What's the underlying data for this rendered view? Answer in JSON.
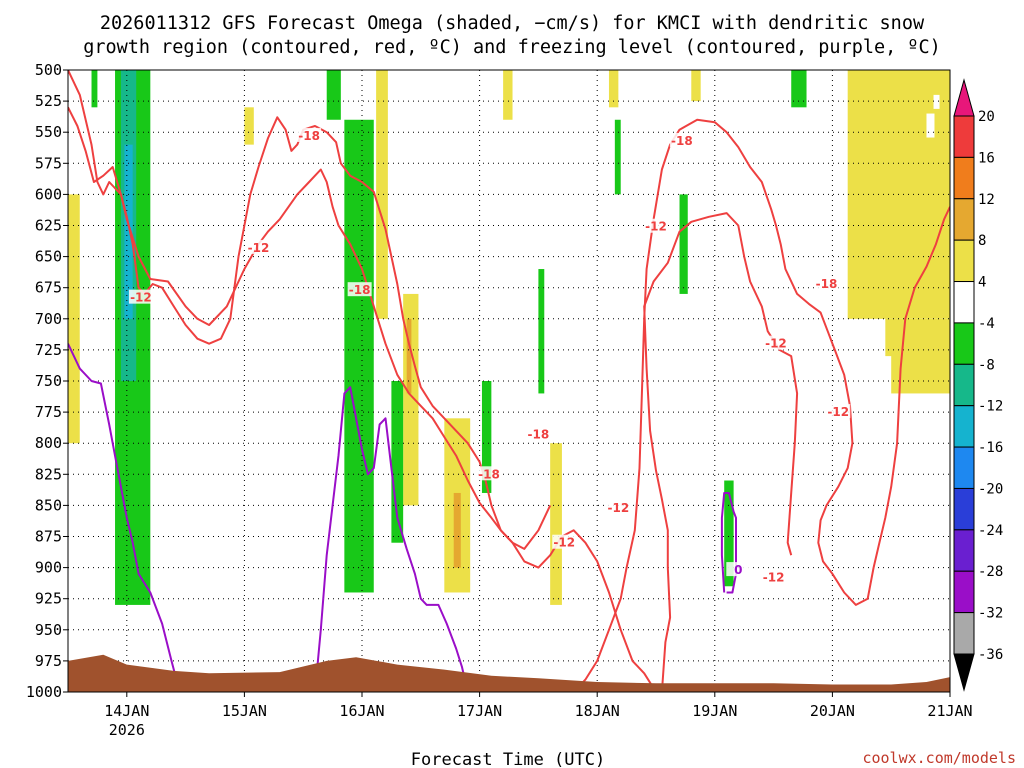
{
  "title": {
    "line1": "2026011312 GFS Forecast Omega (shaded, −cm/s) for KMCI with dendritic snow",
    "line2": "growth region (contoured, red, ºC) and freezing level (contoured, purple, ºC)"
  },
  "xlabel": "Forecast Time (UTC)",
  "credit": "coolwx.com/models",
  "chart_data": {
    "type": "heatmap",
    "title": "2026011312 GFS Forecast Omega (shaded, −cm/s) for KMCI with dendritic snow growth region (contoured, red, ºC) and freezing level (contoured, purple, ºC)",
    "xlabel": "Forecast Time (UTC)",
    "ylabel": "",
    "x_ticks": [
      {
        "t": 0.5,
        "label": "14JAN",
        "sub": "2026"
      },
      {
        "t": 1.5,
        "label": "15JAN",
        "sub": ""
      },
      {
        "t": 2.5,
        "label": "16JAN",
        "sub": ""
      },
      {
        "t": 3.5,
        "label": "17JAN",
        "sub": ""
      },
      {
        "t": 4.5,
        "label": "18JAN",
        "sub": ""
      },
      {
        "t": 5.5,
        "label": "19JAN",
        "sub": ""
      },
      {
        "t": 6.5,
        "label": "20JAN",
        "sub": ""
      },
      {
        "t": 7.5,
        "label": "21JAN",
        "sub": ""
      }
    ],
    "xlim": [
      0,
      7.5
    ],
    "y_ticks": [
      500,
      525,
      550,
      575,
      600,
      625,
      650,
      675,
      700,
      725,
      750,
      775,
      800,
      825,
      850,
      875,
      900,
      925,
      950,
      975,
      1000
    ],
    "ylim": [
      1000,
      500
    ],
    "grid": true,
    "colorbar": {
      "labels": [
        "20",
        "16",
        "12",
        "8",
        "4",
        "-4",
        "-8",
        "-12",
        "-16",
        "-20",
        "-24",
        "-28",
        "-32",
        "-36"
      ],
      "colors": [
        "#e8177a",
        "#ee3b3b",
        "#f07d1c",
        "#e5a830",
        "#ece048",
        "#ffffff",
        "#18c818",
        "#16b88a",
        "#15b3cf",
        "#1e88f0",
        "#2a3ed8",
        "#6a1fd0",
        "#9a0ec8",
        "#a9a9a9",
        "#000000"
      ]
    },
    "omega_regions": [
      {
        "band": "4 to 8",
        "color": "#ece048",
        "desc": "upward motion, upper levels late 20JAN",
        "t": [
          6.63,
          7.5
        ],
        "p": [
          500,
          750
        ]
      },
      {
        "band": "-4 to -8",
        "color": "#18c818",
        "desc": "downward motion column 16JAN",
        "t": [
          2.35,
          2.6
        ],
        "p": [
          540,
          925
        ]
      },
      {
        "band": "-8 to -12",
        "color": "#16b88a",
        "desc": "downward motion 14JAN",
        "t": [
          0.45,
          0.58
        ],
        "p": [
          500,
          750
        ]
      }
    ],
    "series": [
      {
        "name": "-18",
        "color": "#ee4040",
        "points": [
          [
            0.0,
            530
          ],
          [
            0.08,
            545
          ],
          [
            0.15,
            565
          ],
          [
            0.22,
            590
          ],
          [
            0.3,
            585
          ],
          [
            0.38,
            578
          ],
          [
            0.45,
            600
          ],
          [
            0.5,
            618
          ],
          [
            0.55,
            640
          ],
          [
            0.6,
            675
          ],
          [
            0.65,
            680
          ],
          [
            0.72,
            672
          ],
          [
            0.8,
            675
          ],
          [
            0.9,
            690
          ],
          [
            1.0,
            705
          ],
          [
            1.1,
            716
          ],
          [
            1.2,
            720
          ],
          [
            1.3,
            716
          ],
          [
            1.38,
            700
          ],
          [
            1.45,
            650
          ],
          [
            1.5,
            625
          ],
          [
            1.55,
            600
          ],
          [
            1.62,
            578
          ],
          [
            1.7,
            555
          ],
          [
            1.78,
            538
          ],
          [
            1.85,
            548
          ],
          [
            1.9,
            565
          ],
          [
            1.95,
            560
          ],
          [
            2.0,
            548
          ],
          [
            2.1,
            545
          ],
          [
            2.2,
            550
          ],
          [
            2.28,
            558
          ],
          [
            2.32,
            575
          ],
          [
            2.4,
            585
          ],
          [
            2.5,
            590
          ],
          [
            2.6,
            598
          ],
          [
            2.7,
            628
          ],
          [
            2.8,
            672
          ],
          [
            2.85,
            700
          ],
          [
            2.9,
            720
          ],
          [
            2.95,
            738
          ],
          [
            3.0,
            755
          ],
          [
            3.1,
            770
          ],
          [
            3.2,
            780
          ],
          [
            3.3,
            790
          ],
          [
            3.4,
            800
          ],
          [
            3.5,
            815
          ],
          [
            3.55,
            830
          ],
          [
            3.6,
            850
          ],
          [
            3.68,
            870
          ],
          [
            3.78,
            880
          ],
          [
            3.88,
            895
          ],
          [
            4.0,
            900
          ],
          [
            4.1,
            890
          ],
          [
            4.2,
            875
          ],
          [
            4.3,
            870
          ],
          [
            4.4,
            880
          ],
          [
            4.5,
            895
          ],
          [
            4.6,
            920
          ],
          [
            4.7,
            950
          ],
          [
            4.8,
            975
          ],
          [
            4.9,
            985
          ],
          [
            5.0,
            1000
          ]
        ]
      },
      {
        "name": "-18",
        "color": "#ee4040",
        "points": [
          [
            0.0,
            500
          ],
          [
            0.1,
            520
          ],
          [
            0.2,
            560
          ],
          [
            0.25,
            590
          ],
          [
            0.3,
            600
          ],
          [
            0.35,
            590
          ],
          [
            0.45,
            600
          ],
          [
            0.5,
            620
          ],
          [
            0.6,
            650
          ],
          [
            0.7,
            668
          ],
          [
            0.85,
            670
          ],
          [
            1.0,
            690
          ],
          [
            1.1,
            700
          ],
          [
            1.2,
            705
          ],
          [
            1.35,
            690
          ],
          [
            1.5,
            660
          ],
          [
            1.62,
            640
          ],
          [
            1.7,
            630
          ],
          [
            1.8,
            620
          ],
          [
            1.95,
            600
          ],
          [
            2.05,
            590
          ],
          [
            2.15,
            580
          ],
          [
            2.2,
            590
          ],
          [
            2.25,
            610
          ],
          [
            2.3,
            625
          ],
          [
            2.4,
            640
          ],
          [
            2.5,
            660
          ],
          [
            2.6,
            690
          ],
          [
            2.7,
            720
          ],
          [
            2.8,
            745
          ],
          [
            2.9,
            760
          ],
          [
            3.0,
            770
          ],
          [
            3.1,
            780
          ],
          [
            3.2,
            795
          ],
          [
            3.3,
            810
          ],
          [
            3.4,
            830
          ],
          [
            3.5,
            848
          ],
          [
            3.6,
            860
          ],
          [
            3.68,
            870
          ],
          [
            3.78,
            880
          ],
          [
            3.88,
            885
          ],
          [
            4.0,
            870
          ],
          [
            4.1,
            850
          ]
        ]
      },
      {
        "name": "-12",
        "color": "#ee4040",
        "points": [
          [
            4.3,
            1000
          ],
          [
            4.4,
            990
          ],
          [
            4.5,
            975
          ],
          [
            4.6,
            950
          ],
          [
            4.7,
            925
          ],
          [
            4.75,
            900
          ],
          [
            4.82,
            870
          ],
          [
            4.86,
            820
          ],
          [
            4.88,
            760
          ],
          [
            4.9,
            700
          ],
          [
            4.92,
            660
          ],
          [
            4.98,
            620
          ],
          [
            5.05,
            580
          ],
          [
            5.12,
            560
          ],
          [
            5.2,
            548
          ],
          [
            5.35,
            540
          ],
          [
            5.5,
            542
          ],
          [
            5.6,
            550
          ],
          [
            5.7,
            562
          ],
          [
            5.8,
            578
          ],
          [
            5.9,
            590
          ],
          [
            5.98,
            612
          ],
          [
            6.02,
            625
          ],
          [
            6.06,
            640
          ],
          [
            6.1,
            660
          ],
          [
            6.2,
            680
          ],
          [
            6.3,
            688
          ],
          [
            6.4,
            695
          ],
          [
            6.46,
            710
          ],
          [
            6.52,
            725
          ],
          [
            6.6,
            745
          ],
          [
            6.65,
            770
          ],
          [
            6.67,
            800
          ],
          [
            6.63,
            820
          ],
          [
            6.55,
            835
          ],
          [
            6.45,
            850
          ],
          [
            6.4,
            862
          ],
          [
            6.38,
            880
          ],
          [
            6.42,
            895
          ],
          [
            6.5,
            905
          ],
          [
            6.6,
            920
          ],
          [
            6.7,
            930
          ],
          [
            6.8,
            925
          ],
          [
            6.85,
            900
          ],
          [
            6.9,
            880
          ],
          [
            6.95,
            860
          ],
          [
            7.0,
            835
          ],
          [
            7.05,
            800
          ],
          [
            7.08,
            740
          ],
          [
            7.12,
            700
          ],
          [
            7.2,
            675
          ],
          [
            7.3,
            658
          ],
          [
            7.38,
            640
          ],
          [
            7.45,
            620
          ],
          [
            7.5,
            610
          ]
        ]
      },
      {
        "name": "-12",
        "color": "#ee4040",
        "points": [
          [
            5.05,
            1000
          ],
          [
            5.08,
            960
          ],
          [
            5.12,
            940
          ],
          [
            5.1,
            900
          ],
          [
            5.1,
            870
          ],
          [
            5.05,
            845
          ],
          [
            5.0,
            822
          ],
          [
            4.95,
            790
          ],
          [
            4.92,
            740
          ],
          [
            4.9,
            690
          ],
          [
            4.98,
            670
          ],
          [
            5.1,
            655
          ],
          [
            5.2,
            630
          ],
          [
            5.3,
            622
          ],
          [
            5.45,
            618
          ],
          [
            5.6,
            615
          ],
          [
            5.7,
            625
          ],
          [
            5.75,
            650
          ],
          [
            5.8,
            670
          ],
          [
            5.9,
            690
          ],
          [
            5.95,
            710
          ],
          [
            6.05,
            725
          ],
          [
            6.15,
            730
          ],
          [
            6.2,
            760
          ],
          [
            6.18,
            800
          ],
          [
            6.15,
            840
          ],
          [
            6.12,
            880
          ],
          [
            6.15,
            890
          ]
        ]
      },
      {
        "name": "0",
        "color": "#9a0ec8",
        "points": [
          [
            0.0,
            720
          ],
          [
            0.1,
            740
          ],
          [
            0.2,
            750
          ],
          [
            0.28,
            752
          ],
          [
            0.35,
            785
          ],
          [
            0.4,
            810
          ],
          [
            0.45,
            835
          ],
          [
            0.5,
            860
          ],
          [
            0.55,
            880
          ],
          [
            0.6,
            905
          ],
          [
            0.7,
            920
          ],
          [
            0.8,
            945
          ],
          [
            0.88,
            975
          ],
          [
            0.95,
            1000
          ]
        ]
      },
      {
        "name": "0",
        "color": "#9a0ec8",
        "points": [
          [
            1.05,
            1000
          ],
          [
            1.15,
            990
          ],
          [
            1.2,
            993
          ],
          [
            1.25,
            1000
          ]
        ]
      },
      {
        "name": "0",
        "color": "#9a0ec8",
        "points": [
          [
            2.1,
            1000
          ],
          [
            2.15,
            950
          ],
          [
            2.2,
            890
          ],
          [
            2.25,
            850
          ],
          [
            2.3,
            810
          ],
          [
            2.35,
            760
          ],
          [
            2.4,
            755
          ],
          [
            2.45,
            780
          ],
          [
            2.5,
            805
          ],
          [
            2.55,
            825
          ],
          [
            2.6,
            820
          ],
          [
            2.65,
            785
          ],
          [
            2.7,
            780
          ],
          [
            2.75,
            820
          ],
          [
            2.8,
            860
          ],
          [
            2.88,
            885
          ],
          [
            2.95,
            905
          ],
          [
            3.0,
            925
          ],
          [
            3.05,
            930
          ],
          [
            3.15,
            930
          ],
          [
            3.22,
            945
          ],
          [
            3.3,
            965
          ],
          [
            3.35,
            980
          ],
          [
            3.4,
            1000
          ]
        ]
      },
      {
        "name": "0",
        "color": "#9a0ec8",
        "points": [
          [
            5.58,
            920
          ],
          [
            5.56,
            890
          ],
          [
            5.56,
            860
          ],
          [
            5.58,
            840
          ],
          [
            5.62,
            840
          ],
          [
            5.66,
            855
          ],
          [
            5.68,
            860
          ],
          [
            5.68,
            885
          ],
          [
            5.68,
            905
          ],
          [
            5.65,
            920
          ],
          [
            5.6,
            920
          ]
        ]
      }
    ],
    "contour_labels": [
      {
        "text": "-18",
        "t": 2.05,
        "p": 553,
        "color": "#ee4040"
      },
      {
        "text": "-18",
        "t": 2.48,
        "p": 677,
        "color": "#ee4040"
      },
      {
        "text": "-18",
        "t": 3.58,
        "p": 825,
        "color": "#ee4040"
      },
      {
        "text": "-18",
        "t": 4.0,
        "p": 793,
        "color": "#ee4040"
      },
      {
        "text": "-18",
        "t": 5.22,
        "p": 557,
        "color": "#ee4040"
      },
      {
        "text": "-18",
        "t": 6.45,
        "p": 672,
        "color": "#ee4040"
      },
      {
        "text": "-12",
        "t": 0.62,
        "p": 683,
        "color": "#ee4040"
      },
      {
        "text": "-12",
        "t": 1.62,
        "p": 643,
        "color": "#ee4040"
      },
      {
        "text": "-12",
        "t": 4.22,
        "p": 880,
        "color": "#ee4040"
      },
      {
        "text": "-12",
        "t": 4.68,
        "p": 852,
        "color": "#ee4040"
      },
      {
        "text": "-12",
        "t": 5.0,
        "p": 626,
        "color": "#ee4040"
      },
      {
        "text": "-12",
        "t": 6.02,
        "p": 720,
        "color": "#ee4040"
      },
      {
        "text": "-12",
        "t": 6.0,
        "p": 908,
        "color": "#ee4040"
      },
      {
        "text": "-12",
        "t": 6.55,
        "p": 775,
        "color": "#ee4040"
      },
      {
        "text": "0",
        "t": 5.7,
        "p": 902,
        "color": "#9a0ec8"
      }
    ]
  }
}
